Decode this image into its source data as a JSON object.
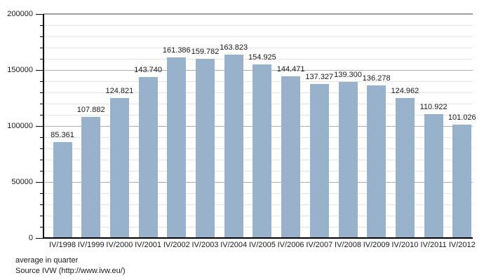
{
  "chart_data": {
    "type": "bar",
    "title": "",
    "xlabel": "",
    "ylabel": "",
    "categories": [
      "IV/1998",
      "IV/1999",
      "IV/2000",
      "IV/2001",
      "IV/2002",
      "IV/2003",
      "IV/2004",
      "IV/2005",
      "IV/2006",
      "IV/2007",
      "IV/2008",
      "IV/2009",
      "IV/2010",
      "IV/2011",
      "IV/2012"
    ],
    "values": [
      85361,
      107882,
      124821,
      143740,
      161386,
      159782,
      163823,
      154925,
      144471,
      137327,
      139300,
      136278,
      124962,
      110922,
      101026
    ],
    "value_label_format": "thousands-dot",
    "ylim": [
      0,
      200000
    ],
    "y_major_step": 50000,
    "y_minor_step": 10000,
    "y_tick_labels": [
      "0",
      "50000",
      "100000",
      "150000",
      "200000"
    ],
    "grid": "horizontal, minor and major lines",
    "legend_position": "none",
    "bar_color": "#98b2cc"
  },
  "colors": {
    "bar": "#98b2cc",
    "grid_minor": "#e6e6e6",
    "grid_major": "#ababab",
    "axis": "#000000",
    "text": "#1a1a1a",
    "background": "#ffffff"
  },
  "footer": {
    "line1": "average in quarter",
    "line2": "Source IVW (http://www.ivw.eu/)"
  }
}
